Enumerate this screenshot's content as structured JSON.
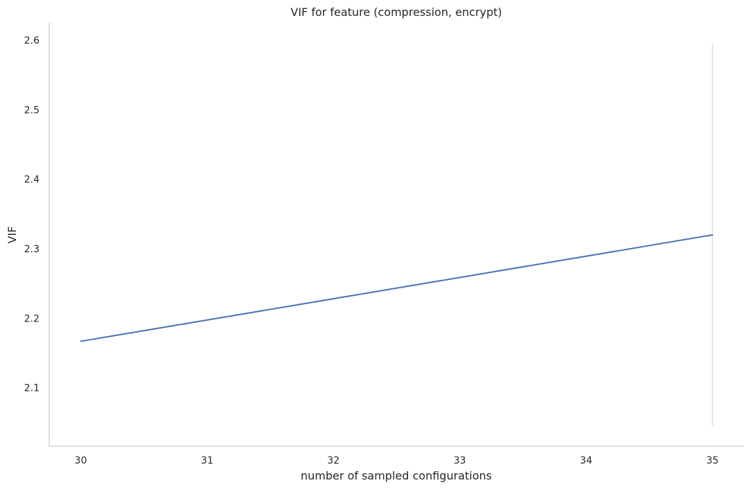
{
  "chart_data": {
    "type": "line",
    "title": "VIF for feature (compression, encrypt)",
    "xlabel": "number of sampled configurations",
    "ylabel": "VIF",
    "xlim": [
      29.75,
      35.25
    ],
    "ylim": [
      2.016,
      2.625
    ],
    "x_ticks": [
      "30",
      "31",
      "32",
      "33",
      "34",
      "35"
    ],
    "y_ticks": [
      "2.1",
      "2.2",
      "2.3",
      "2.4",
      "2.5",
      "2.6"
    ],
    "grid": false,
    "series": [
      {
        "x": [
          30,
          35
        ],
        "y": [
          2.167,
          2.32
        ],
        "error_bar": [
          2.045,
          2.595
        ]
      }
    ],
    "colors": {
      "line": "#4c72b0",
      "error_bar": "#dcdcdc",
      "axis": "#cccccc",
      "text": "#262626"
    }
  }
}
